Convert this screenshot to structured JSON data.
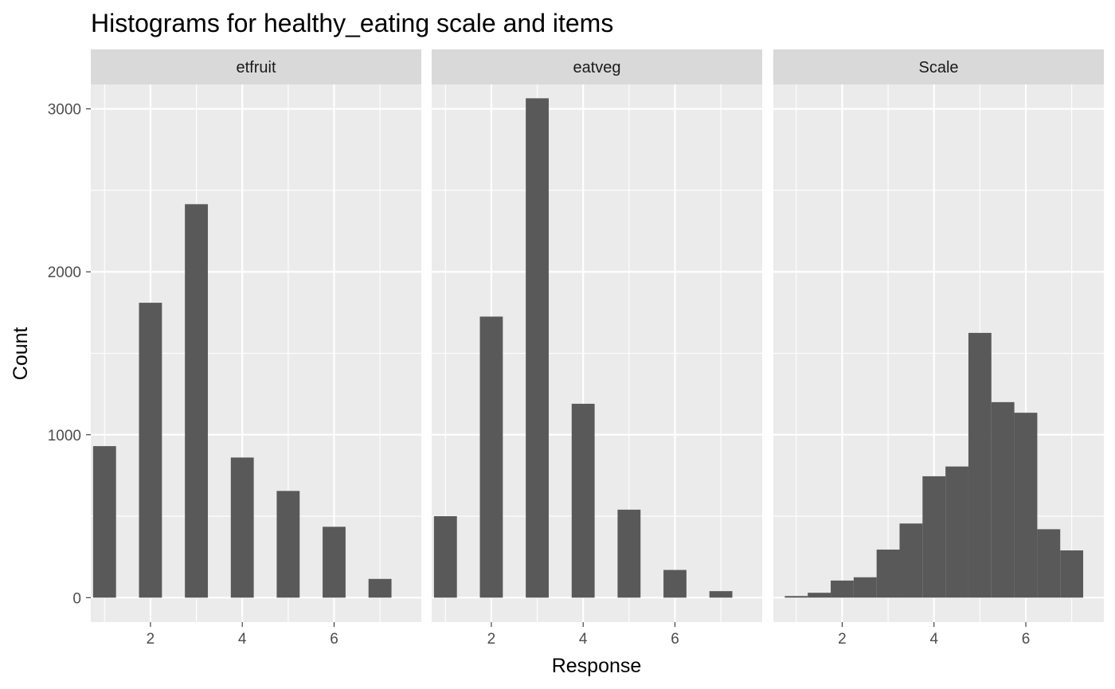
{
  "chart_data": {
    "type": "bar",
    "title": "Histograms for healthy_eating scale and items",
    "xlabel": "Response",
    "ylabel": "Count",
    "ylim": [
      -150,
      3150
    ],
    "y_ticks": [
      0,
      1000,
      2000,
      3000
    ],
    "x_ticks": [
      2,
      4,
      6
    ],
    "grid": true,
    "colors": {
      "bar": "#595959",
      "panel_background": "#ebebeb",
      "strip_background": "#d9d9d9",
      "grid": "#ffffff"
    },
    "panels": [
      {
        "label": "etfruit",
        "xlim": [
          0.7,
          7.9
        ],
        "bars": [
          {
            "x_start": 0.75,
            "x_end": 1.25,
            "value": 930
          },
          {
            "x_start": 1.75,
            "x_end": 2.25,
            "value": 1810
          },
          {
            "x_start": 2.75,
            "x_end": 3.25,
            "value": 2415
          },
          {
            "x_start": 3.75,
            "x_end": 4.25,
            "value": 860
          },
          {
            "x_start": 4.75,
            "x_end": 5.25,
            "value": 655
          },
          {
            "x_start": 5.75,
            "x_end": 6.25,
            "value": 435
          },
          {
            "x_start": 6.75,
            "x_end": 7.25,
            "value": 115
          }
        ]
      },
      {
        "label": "eatveg",
        "xlim": [
          0.7,
          7.9
        ],
        "bars": [
          {
            "x_start": 0.75,
            "x_end": 1.25,
            "value": 500
          },
          {
            "x_start": 1.75,
            "x_end": 2.25,
            "value": 1725
          },
          {
            "x_start": 2.75,
            "x_end": 3.25,
            "value": 3065
          },
          {
            "x_start": 3.75,
            "x_end": 4.25,
            "value": 1190
          },
          {
            "x_start": 4.75,
            "x_end": 5.25,
            "value": 540
          },
          {
            "x_start": 5.75,
            "x_end": 6.25,
            "value": 170
          },
          {
            "x_start": 6.75,
            "x_end": 7.25,
            "value": 40
          }
        ]
      },
      {
        "label": "Scale",
        "xlim": [
          0.5,
          7.7
        ],
        "bars": [
          {
            "x_start": 0.75,
            "x_end": 1.25,
            "value": 10
          },
          {
            "x_start": 1.25,
            "x_end": 1.75,
            "value": 30
          },
          {
            "x_start": 1.75,
            "x_end": 2.25,
            "value": 105
          },
          {
            "x_start": 2.25,
            "x_end": 2.75,
            "value": 125
          },
          {
            "x_start": 2.75,
            "x_end": 3.25,
            "value": 295
          },
          {
            "x_start": 3.25,
            "x_end": 3.75,
            "value": 455
          },
          {
            "x_start": 3.75,
            "x_end": 4.25,
            "value": 745
          },
          {
            "x_start": 4.25,
            "x_end": 4.75,
            "value": 805
          },
          {
            "x_start": 4.75,
            "x_end": 5.25,
            "value": 1625
          },
          {
            "x_start": 5.25,
            "x_end": 5.75,
            "value": 1200
          },
          {
            "x_start": 5.75,
            "x_end": 6.25,
            "value": 1135
          },
          {
            "x_start": 6.25,
            "x_end": 6.75,
            "value": 420
          },
          {
            "x_start": 6.75,
            "x_end": 7.25,
            "value": 290
          }
        ]
      }
    ]
  }
}
